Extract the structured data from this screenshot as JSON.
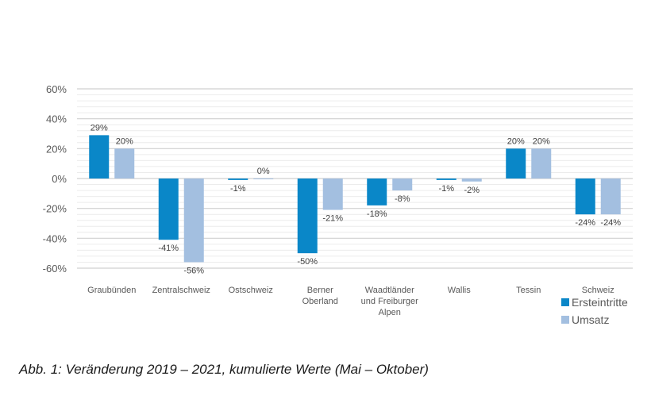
{
  "chart_data": {
    "type": "bar",
    "title": "",
    "xlabel": "",
    "ylabel": "",
    "ylim": [
      -60,
      60
    ],
    "yticks": [
      60,
      40,
      20,
      0,
      -20,
      -40,
      -60
    ],
    "ytick_labels": [
      "60%",
      "40%",
      "20%",
      "0%",
      "-20%",
      "-40%",
      "-60%"
    ],
    "minor_grid_step": 4,
    "grid": true,
    "legend_position": "bottom-right",
    "categories": [
      [
        "Graubünden"
      ],
      [
        "Zentralschweiz"
      ],
      [
        "Ostschweiz"
      ],
      [
        "Berner",
        "Oberland"
      ],
      [
        "Waadtländer",
        "und Freiburger",
        "Alpen"
      ],
      [
        "Wallis"
      ],
      [
        "Tessin"
      ],
      [
        "Schweiz"
      ]
    ],
    "series": [
      {
        "name": "Ersteintritte",
        "color": "#0a87c8",
        "values": [
          29,
          -41,
          -1,
          -50,
          -18,
          -1,
          20,
          -24
        ],
        "labels": [
          "29%",
          "-41%",
          "-1%",
          "-50%",
          "-18%",
          "-1%",
          "20%",
          "-24%"
        ]
      },
      {
        "name": "Umsatz",
        "color": "#a3bfe0",
        "values": [
          20,
          -56,
          0,
          -21,
          -8,
          -2,
          20,
          -24
        ],
        "labels": [
          "20%",
          "-56%",
          "0%",
          "-21%",
          "-8%",
          "-2%",
          "20%",
          "-24%"
        ]
      }
    ]
  },
  "caption": "Abb. 1: Veränderung 2019 – 2021, kumulierte Werte (Mai – Oktober)"
}
